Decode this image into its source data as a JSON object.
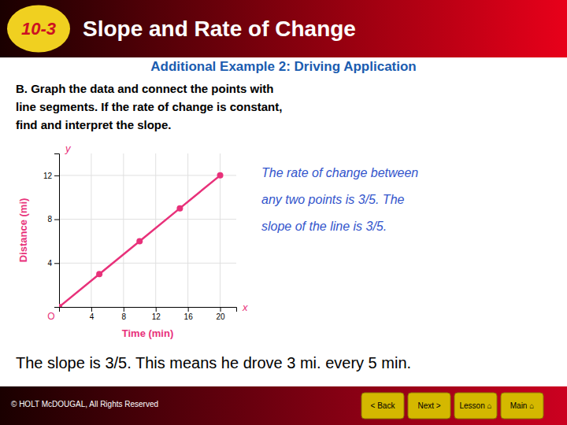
{
  "chart_data": {
    "type": "line",
    "title": "Slope and Rate of Change",
    "subtitle": "Additional Example 2: Driving Application",
    "annotations": [
      "10-3",
      "B. Graph the data and connect the points with",
      "line segments. If the rate of change is constant,",
      "find and interpret the slope.",
      "The rate of change between",
      "any two points is 3/5. The",
      "slope of the line is 3/5.",
      "The slope is 3/5. This means he drove 3 mi. every 5 min.",
      "© HOLT McDOUGAL, All Rights Reserved",
      "< Back",
      "Next >",
      "Lesson ⌂",
      "Main ⌂",
      "x",
      "y",
      "O"
    ],
    "x": [
      0,
      5,
      10,
      15,
      20
    ],
    "values": [
      0,
      3,
      6,
      9,
      12
    ],
    "xlabel": "Time (min)",
    "ylabel": "Distance (mi)",
    "xlim": [
      0,
      22
    ],
    "ylim": [
      0,
      14
    ],
    "xticks": [
      4,
      8,
      12,
      16,
      20
    ],
    "yticks": [
      4,
      8,
      12
    ],
    "grid": true,
    "color": "#E8317A",
    "marker": "circle"
  }
}
